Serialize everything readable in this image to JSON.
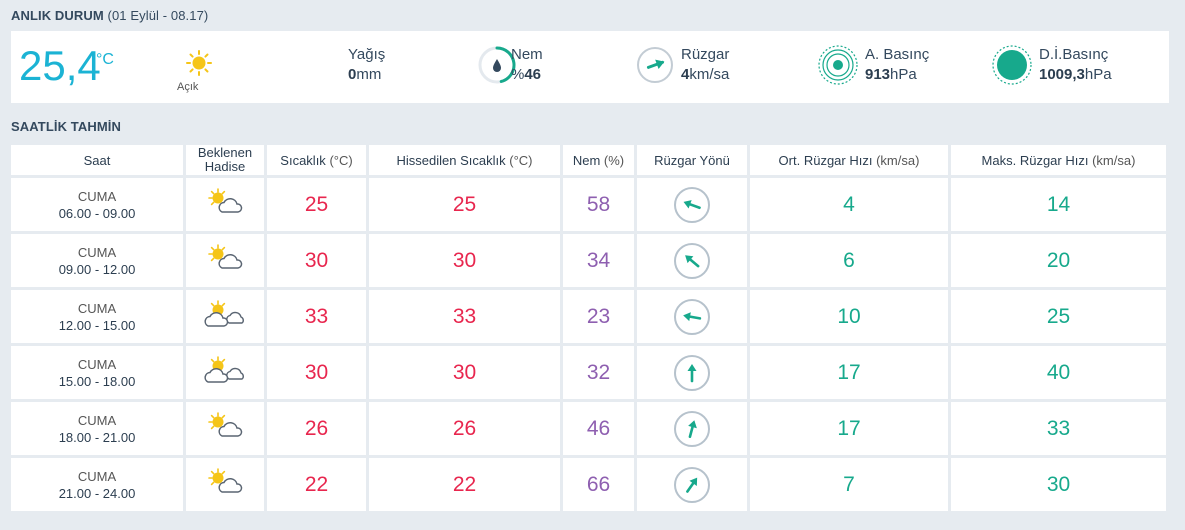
{
  "now": {
    "title": "ANLIK DURUM",
    "subtitle": "(01 Eylül - 08.17)",
    "temp": "25,4",
    "temp_unit": "°C",
    "condition": "Açık",
    "condition_icon": "sun-icon",
    "precip": {
      "label": "Yağış",
      "value": "0",
      "unit": "mm"
    },
    "humidity": {
      "label": "Nem",
      "prefix": "%",
      "value": "46",
      "fraction": 0.46
    },
    "wind": {
      "label": "Rüzgar",
      "value": "4",
      "unit": "km/sa",
      "direction_deg": 250
    },
    "pressure": {
      "label": "A. Basınç",
      "value": "913",
      "unit": "hPa"
    },
    "sea_pressure": {
      "label": "D.İ.Basınç",
      "value": "1009,3",
      "unit": "hPa"
    }
  },
  "hourly": {
    "title": "SAATLİK TAHMİN",
    "headers": {
      "time": "Saat",
      "event_line1": "Beklenen",
      "event_line2": "Hadise",
      "temp": "Sıcaklık",
      "temp_unit": "(°C)",
      "feels": "Hissedilen Sıcaklık",
      "feels_unit": "(°C)",
      "humidity": "Nem",
      "humidity_unit": "(%)",
      "wind_dir": "Rüzgar Yönü",
      "wind_avg": "Ort. Rüzgar Hızı",
      "wind_avg_unit": "(km/sa)",
      "wind_max": "Maks. Rüzgar Hızı",
      "wind_max_unit": "(km/sa)"
    },
    "rows": [
      {
        "day": "CUMA",
        "time": "06.00 - 09.00",
        "icon": "partly-cloudy-icon",
        "temp": "25",
        "feels": "25",
        "humidity": "58",
        "wind_dir_deg": 110,
        "wind_avg": "4",
        "wind_max": "14"
      },
      {
        "day": "CUMA",
        "time": "09.00 - 12.00",
        "icon": "partly-cloudy-icon",
        "temp": "30",
        "feels": "30",
        "humidity": "34",
        "wind_dir_deg": 130,
        "wind_avg": "6",
        "wind_max": "20"
      },
      {
        "day": "CUMA",
        "time": "12.00 - 15.00",
        "icon": "mostly-cloudy-icon",
        "temp": "33",
        "feels": "33",
        "humidity": "23",
        "wind_dir_deg": 100,
        "wind_avg": "10",
        "wind_max": "25"
      },
      {
        "day": "CUMA",
        "time": "15.00 - 18.00",
        "icon": "mostly-cloudy-icon",
        "temp": "30",
        "feels": "30",
        "humidity": "32",
        "wind_dir_deg": 180,
        "wind_avg": "17",
        "wind_max": "40"
      },
      {
        "day": "CUMA",
        "time": "18.00 - 21.00",
        "icon": "partly-cloudy-icon",
        "temp": "26",
        "feels": "26",
        "humidity": "46",
        "wind_dir_deg": 195,
        "wind_avg": "17",
        "wind_max": "33"
      },
      {
        "day": "CUMA",
        "time": "21.00 - 24.00",
        "icon": "partly-cloudy-icon",
        "temp": "22",
        "feels": "22",
        "humidity": "66",
        "wind_dir_deg": 215,
        "wind_avg": "7",
        "wind_max": "30"
      }
    ]
  },
  "colors": {
    "accent": "#1bb3d4",
    "temp": "#e8264e",
    "humidity": "#8e5fb0",
    "wind": "#17a98c",
    "sun": "#f5c518"
  }
}
